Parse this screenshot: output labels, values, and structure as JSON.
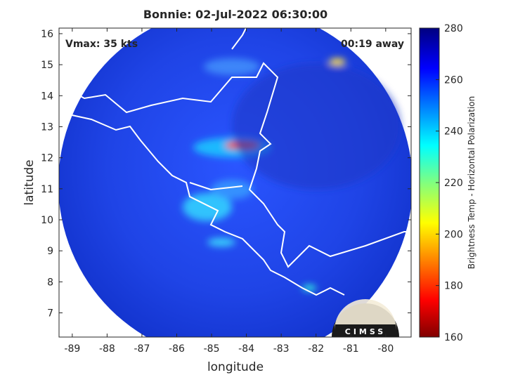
{
  "chart_data": {
    "type": "map",
    "title": "Bonnie: 02-Jul-2022 06:30:00",
    "annotations": [
      "Vmax: 35 kts",
      "00:19 away"
    ],
    "xlabel": "longitude",
    "ylabel": "latitude",
    "xlim": [
      -89.38,
      -79.27
    ],
    "ylim": [
      6.22,
      16.18
    ],
    "xticks": [
      -89,
      -88,
      -87,
      -86,
      -85,
      -84,
      -83,
      -82,
      -81,
      -80
    ],
    "yticks": [
      7,
      8,
      9,
      10,
      11,
      12,
      13,
      14,
      15,
      16
    ],
    "colorbar": {
      "label": "Brightness Temp - Horizontal Polarization",
      "lim": [
        160,
        280
      ],
      "ticks": [
        160,
        180,
        200,
        220,
        240,
        260,
        280
      ]
    },
    "logo": "CIMSS"
  }
}
